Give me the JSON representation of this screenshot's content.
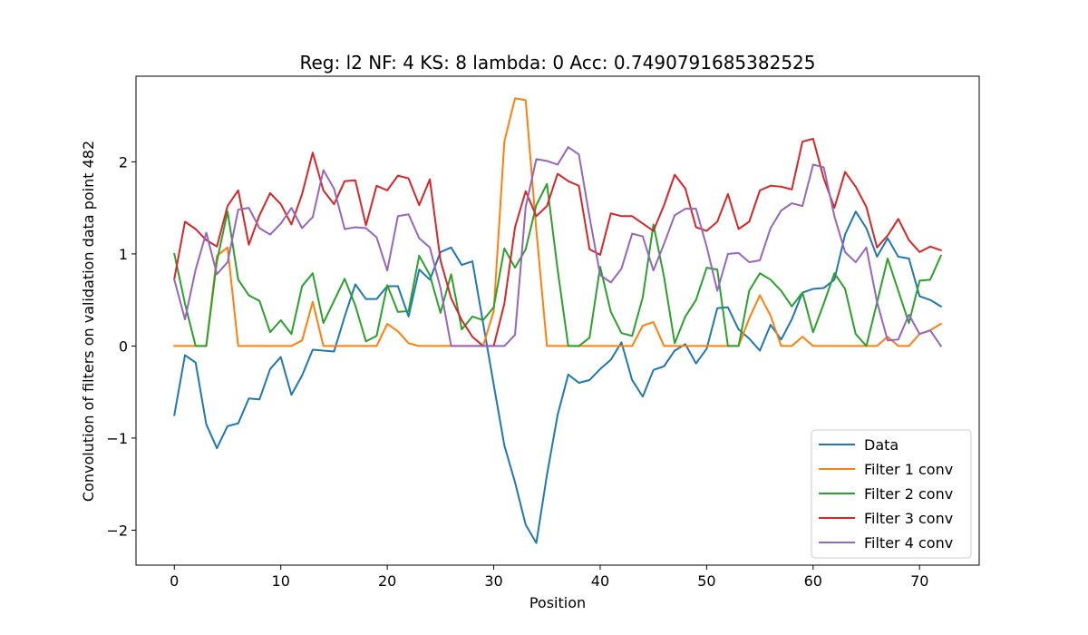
{
  "chart_data": {
    "type": "line",
    "title": "Reg: l2  NF: 4  KS: 8  lambda: 0 Acc: 0.7490791685382525",
    "xlabel": "Position",
    "ylabel": "Convolution of filters on validation data point 482",
    "xlim": [
      -3.6,
      75.6
    ],
    "ylim": [
      -2.38,
      2.93
    ],
    "xticks": [
      0,
      10,
      20,
      30,
      40,
      50,
      60,
      70
    ],
    "yticks": [
      -2,
      -1,
      0,
      1,
      2
    ],
    "xtick_labels": [
      "0",
      "10",
      "20",
      "30",
      "40",
      "50",
      "60",
      "70"
    ],
    "ytick_labels": [
      "−2",
      "−1",
      "0",
      "1",
      "2"
    ],
    "grid": false,
    "legend_position": "lower-right",
    "x": [
      0,
      1,
      2,
      3,
      4,
      5,
      6,
      7,
      8,
      9,
      10,
      11,
      12,
      13,
      14,
      15,
      16,
      17,
      18,
      19,
      20,
      21,
      22,
      23,
      24,
      25,
      26,
      27,
      28,
      29,
      30,
      31,
      32,
      33,
      34,
      35,
      36,
      37,
      38,
      39,
      40,
      41,
      42,
      43,
      44,
      45,
      46,
      47,
      48,
      49,
      50,
      51,
      52,
      53,
      54,
      55,
      56,
      57,
      58,
      59,
      60,
      61,
      62,
      63,
      64,
      65,
      66,
      67,
      68,
      69,
      70,
      71,
      72
    ],
    "series": [
      {
        "name": "Data",
        "color": "#1f77b4",
        "values": [
          -0.75,
          -0.1,
          -0.18,
          -0.85,
          -1.11,
          -0.87,
          -0.84,
          -0.57,
          -0.58,
          -0.25,
          -0.12,
          -0.53,
          -0.32,
          -0.04,
          -0.05,
          -0.06,
          0.32,
          0.67,
          0.51,
          0.51,
          0.65,
          0.65,
          0.32,
          0.83,
          0.72,
          1.02,
          1.07,
          0.88,
          0.92,
          0.25,
          -0.42,
          -1.08,
          -1.48,
          -1.94,
          -2.14,
          -1.4,
          -0.75,
          -0.31,
          -0.4,
          -0.37,
          -0.25,
          -0.15,
          0.04,
          -0.37,
          -0.55,
          -0.26,
          -0.22,
          -0.05,
          0.02,
          -0.19,
          -0.03,
          0.41,
          0.42,
          0.18,
          0.08,
          -0.05,
          0.23,
          0.07,
          0.29,
          0.58,
          0.62,
          0.63,
          0.72,
          1.21,
          1.46,
          1.28,
          0.97,
          1.17,
          0.97,
          0.95,
          0.54,
          0.5,
          0.43
        ]
      },
      {
        "name": "Filter 1 conv",
        "color": "#ff7f0e",
        "values": [
          0,
          0,
          0,
          0,
          0.98,
          1.07,
          0,
          0,
          0,
          0,
          0,
          0,
          0.06,
          0.48,
          0,
          0,
          0,
          0,
          0,
          0,
          0.24,
          0.16,
          0.03,
          0,
          0,
          0,
          0,
          0,
          0,
          0,
          0.38,
          2.22,
          2.69,
          2.67,
          1.26,
          0,
          0,
          0,
          0,
          0,
          0,
          0,
          0,
          0,
          0.22,
          0.26,
          0,
          0,
          0,
          0,
          0,
          0,
          0,
          0,
          0.3,
          0.55,
          0.33,
          0,
          0,
          0.1,
          0,
          0,
          0,
          0,
          0,
          0,
          0,
          0.1,
          0,
          0,
          0.13,
          0.17,
          0.24
        ]
      },
      {
        "name": "Filter 2 conv",
        "color": "#2ca02c",
        "values": [
          1,
          0.46,
          0,
          0,
          0.92,
          1.46,
          0.72,
          0.55,
          0.49,
          0.15,
          0.28,
          0.13,
          0.65,
          0.79,
          0.25,
          0.49,
          0.73,
          0.44,
          0.05,
          0.11,
          0.66,
          0.37,
          0.38,
          0.98,
          0.77,
          0.36,
          0.78,
          0.18,
          0.32,
          0.28,
          0.42,
          1.06,
          0.85,
          1.05,
          1.53,
          1.76,
          0.83,
          0,
          0,
          0.09,
          0.86,
          0.37,
          0.14,
          0.11,
          0.53,
          1.32,
          0.75,
          0.03,
          0.32,
          0.5,
          0.85,
          0.83,
          0,
          0,
          0.6,
          0.79,
          0.72,
          0.6,
          0.43,
          0.58,
          0.15,
          0.46,
          0.79,
          0.62,
          0.13,
          0,
          0.47,
          0.95,
          0.6,
          0.25,
          0.71,
          0.72,
          0.98
        ]
      },
      {
        "name": "Filter 3 conv",
        "color": "#d62728",
        "values": [
          0.73,
          1.35,
          1.27,
          1.15,
          1.08,
          1.52,
          1.69,
          1.1,
          1.42,
          1.66,
          1.54,
          1.32,
          1.65,
          2.1,
          1.69,
          1.54,
          1.79,
          1.8,
          1.31,
          1.74,
          1.69,
          1.85,
          1.82,
          1.53,
          1.81,
          0.93,
          0.52,
          0.28,
          0.1,
          0,
          0,
          0.46,
          1.29,
          1.68,
          1.41,
          1.52,
          1.87,
          1.79,
          1.74,
          1.05,
          0.99,
          1.44,
          1.41,
          1.41,
          1.33,
          1.25,
          1.53,
          1.86,
          1.71,
          1.29,
          1.25,
          1.35,
          1.65,
          1.27,
          1.35,
          1.69,
          1.74,
          1.73,
          1.7,
          2.22,
          2.25,
          1.82,
          1.5,
          1.89,
          1.73,
          1.51,
          1.07,
          1.2,
          1.38,
          1.15,
          1.02,
          1.08,
          1.04
        ]
      },
      {
        "name": "Filter 4 conv",
        "color": "#9467bd",
        "values": [
          0.72,
          0.29,
          0.83,
          1.23,
          0.78,
          0.91,
          1.48,
          1.5,
          1.28,
          1.21,
          1.33,
          1.5,
          1.28,
          1.4,
          1.91,
          1.71,
          1.27,
          1.29,
          1.28,
          1.18,
          0.82,
          1.41,
          1.43,
          1.17,
          1.07,
          0.63,
          0,
          0,
          0,
          0,
          0,
          0,
          0.12,
          1.51,
          2.03,
          2.01,
          1.97,
          2.16,
          2.08,
          1.4,
          0.77,
          0.69,
          0.84,
          1.22,
          1.19,
          0.82,
          1.11,
          1.42,
          1.49,
          1.49,
          1.08,
          0.6,
          1,
          1.01,
          0.91,
          0.93,
          1.28,
          1.47,
          1.55,
          1.52,
          1.97,
          1.94,
          1.41,
          1.02,
          0.91,
          1.07,
          0.48,
          0.06,
          0.07,
          0.34,
          0.13,
          0.17,
          0
        ]
      }
    ]
  }
}
